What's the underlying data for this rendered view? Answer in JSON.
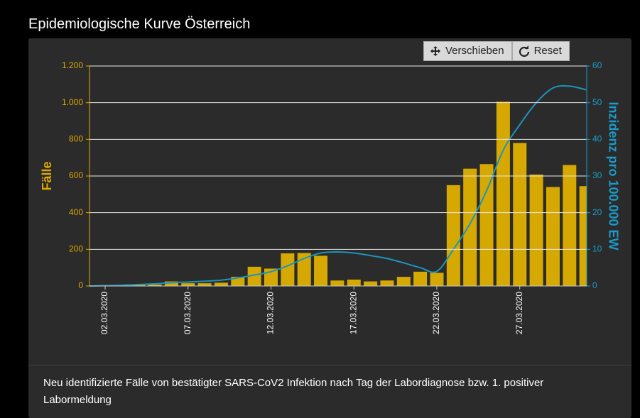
{
  "chart_data": {
    "type": "bar",
    "title": "Epidemiologische Kurve Österreich",
    "toolbar": [
      "Verschieben",
      "Reset"
    ],
    "caption": "Neu identifizierte Fälle von bestätigter SARS-CoV2 Infektion nach Tag der Labordiagnose bzw. 1. positiver Labormeldung",
    "ylabel": "Fälle",
    "y2label": "Inzidenz pro 100.000 EW",
    "categories": [
      null,
      "02.03.2020",
      null,
      null,
      null,
      null,
      "07.03.2020",
      null,
      null,
      null,
      null,
      "12.03.2020",
      null,
      null,
      null,
      null,
      "17.03.2020",
      null,
      null,
      null,
      null,
      "22.03.2020",
      null,
      null,
      null,
      null,
      "27.03.2020",
      null,
      null,
      null,
      null
    ],
    "series": [
      {
        "type": "bar",
        "color": "#d6a900",
        "values": [
          0,
          1,
          2,
          8,
          8,
          25,
          15,
          15,
          18,
          50,
          105,
          95,
          178,
          180,
          165,
          30,
          35,
          25,
          30,
          50,
          78,
          72,
          550,
          640,
          665,
          1005,
          780,
          608,
          540,
          660,
          545
        ]
      },
      {
        "type": "line",
        "axis": "y2",
        "color": "#1a95bb",
        "values": [
          0,
          0.1,
          0.2,
          0.4,
          0.6,
          0.9,
          1.1,
          1.3,
          1.6,
          2.2,
          3.0,
          3.9,
          5.5,
          7.5,
          9.0,
          9.3,
          9.0,
          8.3,
          7.5,
          6.3,
          5.0,
          4.0,
          10,
          17,
          26,
          37,
          44,
          50,
          54,
          54.5,
          53.5
        ]
      }
    ],
    "ylim": [
      0,
      1200
    ],
    "yticks": [
      0,
      200,
      400,
      600,
      800,
      {
        "value": 1000,
        "label": "1.000"
      },
      {
        "value": 1200,
        "label": "1.200"
      }
    ],
    "y2lim": [
      0,
      60
    ],
    "y2ticks": [
      0,
      10,
      20,
      30,
      40,
      50,
      60
    ],
    "grid": true
  }
}
